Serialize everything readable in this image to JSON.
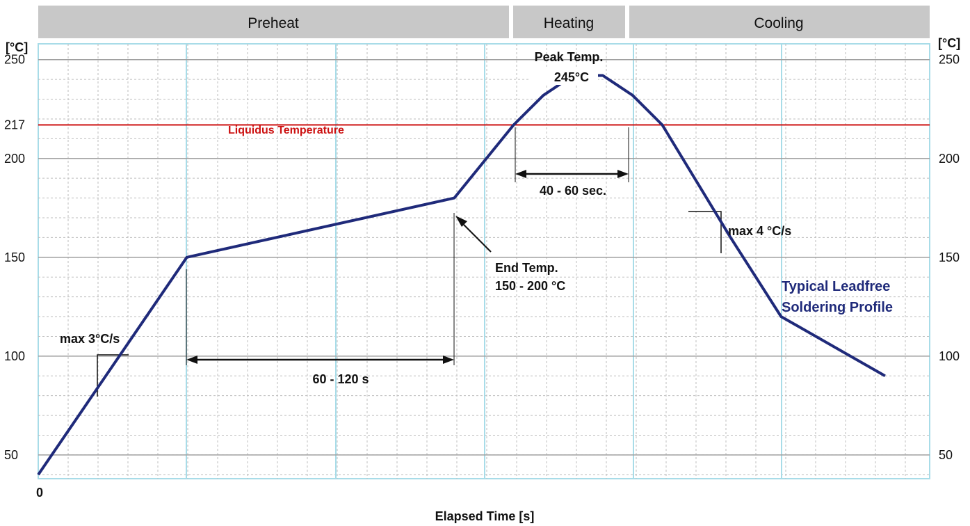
{
  "chart_data": {
    "type": "line",
    "phases": [
      {
        "label": "Preheat"
      },
      {
        "label": "Heating"
      },
      {
        "label": "Cooling"
      }
    ],
    "y_unit_left": "[°C]",
    "y_unit_right": "[°C]",
    "y_ticks": [
      50,
      100,
      150,
      200,
      217,
      250
    ],
    "y_tick_labels": [
      "50",
      "100",
      "150",
      "200",
      "217",
      "250"
    ],
    "ylim": [
      38,
      258
    ],
    "x_range": [
      0,
      300
    ],
    "x_tick_label": "0",
    "xlabel": "Elapsed Time [s]",
    "liquidus": {
      "value": 217,
      "label": "Liquidus Temperature",
      "color": "#cc1111"
    },
    "series": [
      {
        "name": "Typical Leadfree Soldering Profile",
        "color": "#1f2a7a",
        "x": [
          0,
          50,
          140,
          160,
          170,
          180,
          190,
          200,
          210,
          233,
          250,
          285
        ],
        "y": [
          40,
          150,
          180,
          217,
          232,
          242,
          242,
          232,
          217,
          160,
          120,
          90
        ]
      }
    ],
    "annotations": {
      "ramp_rate": "max 3°C/s",
      "soak_time": "60 - 120 s",
      "end_temp_line1": "End Temp.",
      "end_temp_line2": "150 - 200 °C",
      "peak_line1": "Peak Temp.",
      "peak_line2": "245°C",
      "tal": "40 - 60 sec.",
      "cool_rate": "max 4 °C/s",
      "profile_line1": "Typical Leadfree",
      "profile_line2": "Soldering Profile"
    }
  }
}
